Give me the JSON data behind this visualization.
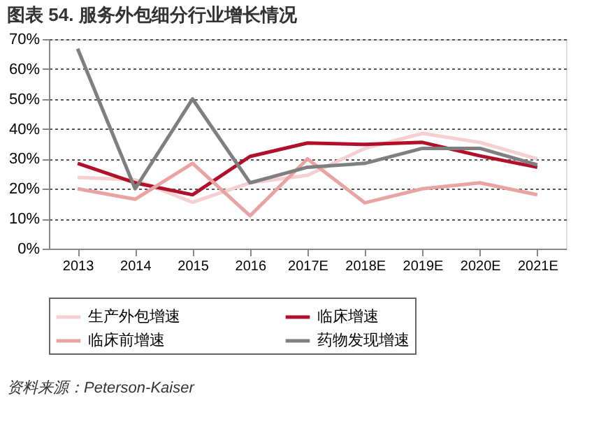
{
  "chart_data": {
    "type": "line",
    "title": "图表 54.  服务外包细分行业增长情况",
    "categories": [
      "2013",
      "2014",
      "2015",
      "2016",
      "2017E",
      "2018E",
      "2019E",
      "2020E",
      "2021E"
    ],
    "series": [
      {
        "name": "生产外包增速",
        "color": "#f6cfd0",
        "values": [
          23.8,
          23,
          15.5,
          22,
          24.5,
          33.5,
          38.5,
          35.5,
          30
        ]
      },
      {
        "name": "临床增速",
        "color": "#b0102a",
        "values": [
          28.5,
          22,
          18,
          30.8,
          35.3,
          34.8,
          35.5,
          31,
          27.2
        ]
      },
      {
        "name": "临床前增速",
        "color": "#e8a3a3",
        "values": [
          20,
          16.5,
          28.5,
          11,
          30,
          15.3,
          20,
          22,
          18
        ]
      },
      {
        "name": "药物发现增速",
        "color": "#7f7f7f",
        "values": [
          66.8,
          20,
          50,
          22,
          27.2,
          28.5,
          33.5,
          33.5,
          28
        ]
      }
    ],
    "ylim": [
      0,
      70
    ],
    "yticks": [
      {
        "value": 0,
        "label": "0%"
      },
      {
        "value": 10,
        "label": "10%"
      },
      {
        "value": 20,
        "label": "20%"
      },
      {
        "value": 30,
        "label": "30%"
      },
      {
        "value": 40,
        "label": "40%"
      },
      {
        "value": 50,
        "label": "50%"
      },
      {
        "value": 60,
        "label": "60%"
      },
      {
        "value": 70,
        "label": "70%"
      }
    ],
    "grid": "y",
    "legend": "bottom",
    "marker": "none",
    "line_style": "solid",
    "annotations": [
      "资料来源：Peterson-Kaiser"
    ]
  }
}
